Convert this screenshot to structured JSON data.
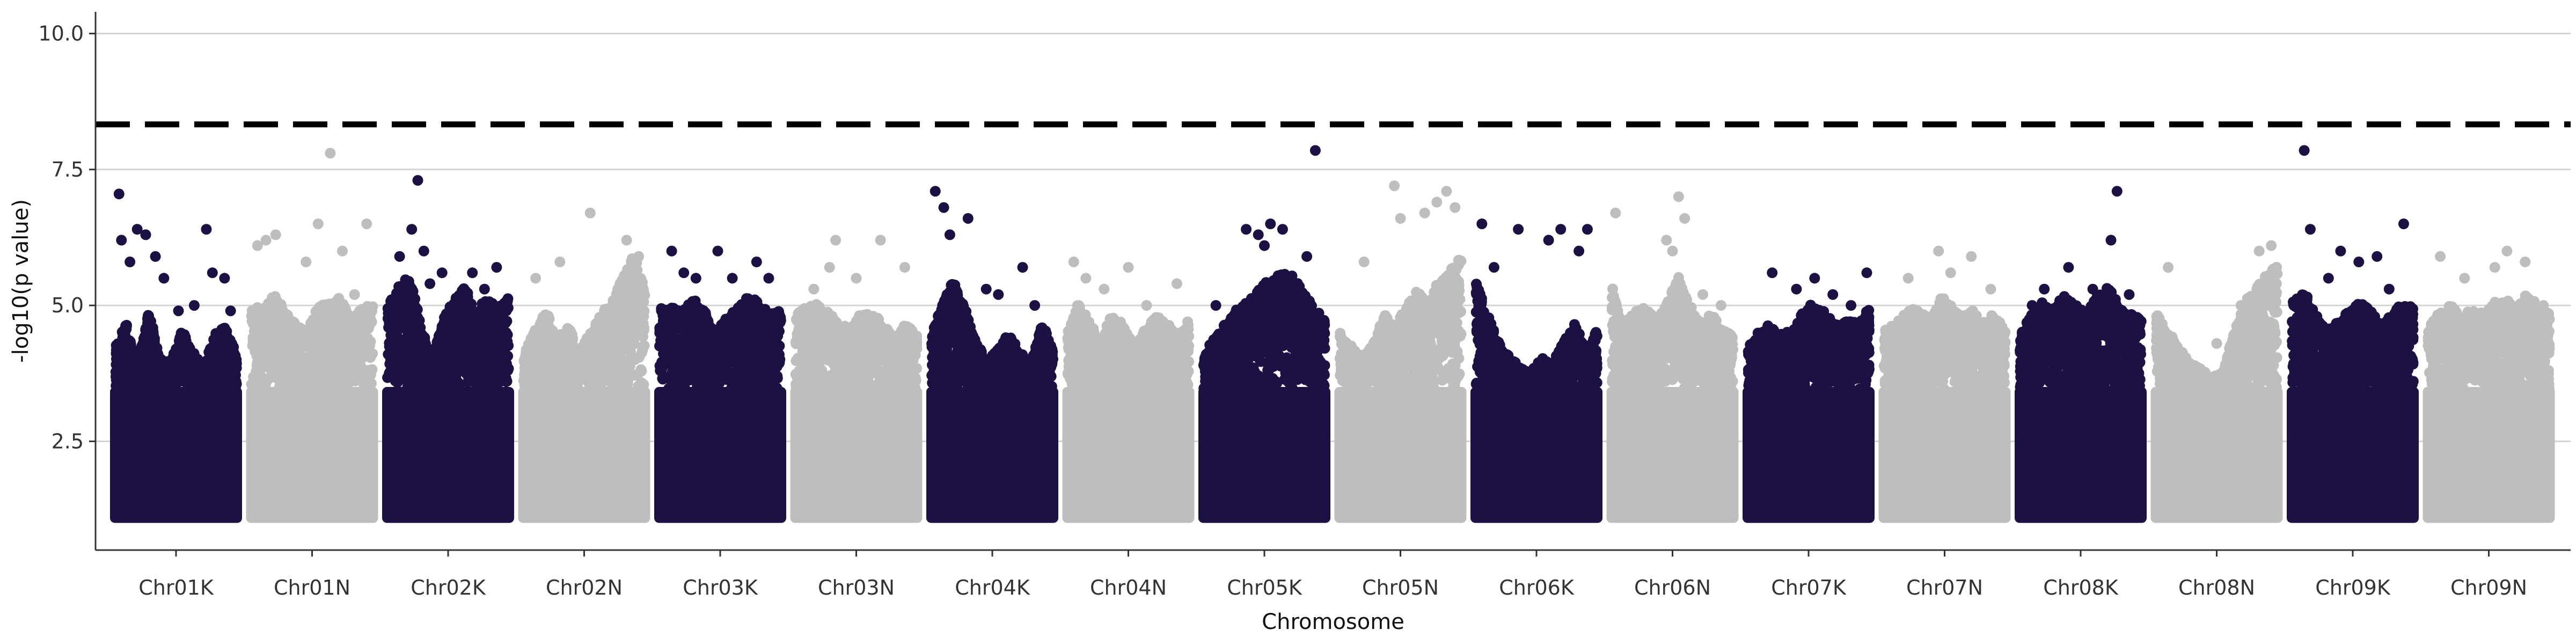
{
  "chart_data": {
    "type": "scatter",
    "title": "",
    "xlabel": "Chromosome",
    "ylabel": "-log10(p value)",
    "ylim": [
      0.5,
      10.4
    ],
    "yticks": [
      2.5,
      5.0,
      7.5,
      10.0
    ],
    "yticks_text": [
      "2.5",
      "5.0",
      "7.5",
      "10.0"
    ],
    "grid": "horizontal major lines",
    "threshold": 8.33,
    "threshold_style": "dashed black line",
    "colors": [
      "#1c1142",
      "#bebebe"
    ],
    "categories": [
      "Chr01K",
      "Chr01N",
      "Chr02K",
      "Chr02N",
      "Chr03K",
      "Chr03N",
      "Chr04K",
      "Chr04N",
      "Chr05K",
      "Chr05N",
      "Chr06K",
      "Chr06N",
      "Chr07K",
      "Chr07N",
      "Chr08K",
      "Chr08N",
      "Chr09K",
      "Chr09N"
    ],
    "series": [
      {
        "chromosome": "Chr01K",
        "color_index": 0,
        "dense_top": [
          4.2,
          4.6,
          3.8,
          4.9,
          4.0,
          3.9,
          4.5,
          4.1,
          3.8,
          4.4,
          4.6,
          4.0
        ],
        "peaks": [
          [
            0.03,
            7.05
          ],
          [
            0.05,
            6.2
          ],
          [
            0.12,
            5.8
          ],
          [
            0.18,
            6.4
          ],
          [
            0.25,
            6.3
          ],
          [
            0.33,
            5.9
          ],
          [
            0.4,
            5.5
          ],
          [
            0.52,
            4.9
          ],
          [
            0.65,
            5.0
          ],
          [
            0.75,
            6.4
          ],
          [
            0.8,
            5.6
          ],
          [
            0.9,
            5.5
          ],
          [
            0.95,
            4.9
          ]
        ]
      },
      {
        "chromosome": "Chr01N",
        "color_index": 1,
        "dense_top": [
          5.0,
          4.8,
          5.2,
          4.9,
          4.6,
          4.5,
          4.9,
          5.0,
          5.1,
          4.7,
          4.9,
          5.0
        ],
        "peaks": [
          [
            0.05,
            6.1
          ],
          [
            0.12,
            6.2
          ],
          [
            0.2,
            6.3
          ],
          [
            0.45,
            5.8
          ],
          [
            0.55,
            6.5
          ],
          [
            0.65,
            7.8
          ],
          [
            0.75,
            6.0
          ],
          [
            0.85,
            5.2
          ],
          [
            0.95,
            6.5
          ]
        ]
      },
      {
        "chromosome": "Chr02K",
        "color_index": 0,
        "dense_top": [
          4.9,
          5.3,
          5.5,
          4.6,
          3.9,
          4.7,
          5.0,
          5.3,
          4.8,
          5.1,
          4.9,
          5.2
        ],
        "peaks": [
          [
            0.1,
            5.9
          ],
          [
            0.2,
            6.4
          ],
          [
            0.25,
            7.3
          ],
          [
            0.3,
            6.0
          ],
          [
            0.35,
            5.4
          ],
          [
            0.45,
            5.6
          ],
          [
            0.7,
            5.6
          ],
          [
            0.8,
            5.3
          ],
          [
            0.9,
            5.7
          ]
        ]
      },
      {
        "chromosome": "Chr02N",
        "color_index": 1,
        "dense_top": [
          4.0,
          4.5,
          4.9,
          4.3,
          4.6,
          4.1,
          4.4,
          4.8,
          5.0,
          5.5,
          5.9,
          5.2
        ],
        "peaks": [
          [
            0.1,
            5.5
          ],
          [
            0.3,
            5.8
          ],
          [
            0.55,
            6.7
          ],
          [
            0.85,
            6.2
          ],
          [
            0.95,
            5.9
          ]
        ]
      },
      {
        "chromosome": "Chr03K",
        "color_index": 0,
        "dense_top": [
          4.9,
          5.0,
          4.8,
          5.1,
          4.9,
          4.4,
          4.7,
          4.9,
          5.1,
          5.0,
          4.8,
          4.9
        ],
        "peaks": [
          [
            0.1,
            6.0
          ],
          [
            0.2,
            5.6
          ],
          [
            0.3,
            5.5
          ],
          [
            0.48,
            6.0
          ],
          [
            0.6,
            5.5
          ],
          [
            0.8,
            5.8
          ],
          [
            0.9,
            5.5
          ]
        ]
      },
      {
        "chromosome": "Chr03N",
        "color_index": 1,
        "dense_top": [
          4.8,
          4.9,
          5.0,
          4.8,
          4.6,
          4.5,
          4.9,
          4.8,
          4.6,
          4.3,
          4.6,
          4.4
        ],
        "peaks": [
          [
            0.15,
            5.3
          ],
          [
            0.28,
            5.7
          ],
          [
            0.33,
            6.2
          ],
          [
            0.5,
            5.5
          ],
          [
            0.7,
            6.2
          ],
          [
            0.9,
            5.7
          ]
        ]
      },
      {
        "chromosome": "Chr04K",
        "color_index": 0,
        "dense_top": [
          4.4,
          5.0,
          5.4,
          4.9,
          4.3,
          3.9,
          4.2,
          4.4,
          4.1,
          3.9,
          4.6,
          4.2
        ],
        "peaks": [
          [
            0.03,
            7.1
          ],
          [
            0.1,
            6.8
          ],
          [
            0.15,
            6.3
          ],
          [
            0.3,
            6.6
          ],
          [
            0.45,
            5.3
          ],
          [
            0.55,
            5.2
          ],
          [
            0.75,
            5.7
          ],
          [
            0.85,
            5.0
          ]
        ]
      },
      {
        "chromosome": "Chr04N",
        "color_index": 1,
        "dense_top": [
          4.5,
          5.0,
          4.6,
          4.3,
          4.8,
          4.6,
          4.2,
          4.5,
          4.8,
          4.6,
          4.4,
          4.7
        ],
        "peaks": [
          [
            0.05,
            5.8
          ],
          [
            0.15,
            5.5
          ],
          [
            0.3,
            5.3
          ],
          [
            0.5,
            5.7
          ],
          [
            0.65,
            5.0
          ],
          [
            0.9,
            5.4
          ]
        ]
      },
      {
        "chromosome": "Chr05K",
        "color_index": 0,
        "dense_top": [
          4.0,
          4.4,
          4.6,
          4.9,
          5.0,
          5.3,
          5.4,
          5.6,
          5.5,
          5.2,
          4.9,
          4.7
        ],
        "peaks": [
          [
            0.1,
            5.0
          ],
          [
            0.35,
            6.4
          ],
          [
            0.45,
            6.3
          ],
          [
            0.5,
            6.1
          ],
          [
            0.55,
            6.5
          ],
          [
            0.65,
            6.4
          ],
          [
            0.85,
            5.9
          ],
          [
            0.92,
            7.85
          ]
        ]
      },
      {
        "chromosome": "Chr05N",
        "color_index": 1,
        "dense_top": [
          4.5,
          4.2,
          4.0,
          4.2,
          4.8,
          4.6,
          4.9,
          5.2,
          5.0,
          5.4,
          5.6,
          5.9
        ],
        "peaks": [
          [
            0.2,
            5.8
          ],
          [
            0.45,
            7.2
          ],
          [
            0.5,
            6.6
          ],
          [
            0.7,
            6.7
          ],
          [
            0.8,
            6.9
          ],
          [
            0.88,
            7.1
          ],
          [
            0.95,
            6.8
          ]
        ]
      },
      {
        "chromosome": "Chr06K",
        "color_index": 0,
        "dense_top": [
          5.5,
          4.8,
          4.3,
          4.0,
          3.8,
          3.7,
          4.0,
          3.9,
          4.3,
          4.6,
          4.1,
          4.5
        ],
        "peaks": [
          [
            0.05,
            6.5
          ],
          [
            0.15,
            5.7
          ],
          [
            0.35,
            6.4
          ],
          [
            0.6,
            6.2
          ],
          [
            0.7,
            6.4
          ],
          [
            0.85,
            6.0
          ],
          [
            0.92,
            6.4
          ]
        ]
      },
      {
        "chromosome": "Chr06N",
        "color_index": 1,
        "dense_top": [
          5.3,
          4.6,
          4.8,
          4.9,
          4.7,
          5.0,
          5.5,
          5.0,
          4.6,
          4.8,
          4.5,
          4.4
        ],
        "peaks": [
          [
            0.03,
            6.7
          ],
          [
            0.45,
            6.2
          ],
          [
            0.5,
            6.0
          ],
          [
            0.55,
            7.0
          ],
          [
            0.6,
            6.6
          ],
          [
            0.75,
            5.2
          ],
          [
            0.9,
            5.0
          ]
        ]
      },
      {
        "chromosome": "Chr07K",
        "color_index": 0,
        "dense_top": [
          4.2,
          4.5,
          4.6,
          4.4,
          4.5,
          4.8,
          5.0,
          4.8,
          4.6,
          4.7,
          4.6,
          4.9
        ],
        "peaks": [
          [
            0.2,
            5.6
          ],
          [
            0.4,
            5.3
          ],
          [
            0.55,
            5.5
          ],
          [
            0.7,
            5.2
          ],
          [
            0.85,
            5.0
          ],
          [
            0.98,
            5.6
          ]
        ]
      },
      {
        "chromosome": "Chr07N",
        "color_index": 1,
        "dense_top": [
          4.5,
          4.6,
          4.8,
          4.9,
          4.7,
          5.1,
          5.0,
          4.7,
          4.9,
          4.6,
          4.8,
          4.5
        ],
        "peaks": [
          [
            0.2,
            5.5
          ],
          [
            0.45,
            6.0
          ],
          [
            0.55,
            5.6
          ],
          [
            0.72,
            5.9
          ],
          [
            0.88,
            5.3
          ]
        ]
      },
      {
        "chromosome": "Chr08K",
        "color_index": 0,
        "dense_top": [
          4.4,
          4.8,
          5.0,
          4.9,
          5.1,
          5.0,
          4.8,
          5.2,
          5.3,
          4.9,
          4.8,
          4.7
        ],
        "peaks": [
          [
            0.1,
            5.0
          ],
          [
            0.2,
            5.3
          ],
          [
            0.4,
            5.7
          ],
          [
            0.6,
            5.3
          ],
          [
            0.75,
            6.2
          ],
          [
            0.8,
            7.1
          ],
          [
            0.9,
            5.2
          ]
        ]
      },
      {
        "chromosome": "Chr08N",
        "color_index": 1,
        "dense_top": [
          4.8,
          4.5,
          4.2,
          3.9,
          3.8,
          3.6,
          3.7,
          4.4,
          5.0,
          5.3,
          5.5,
          5.8
        ],
        "peaks": [
          [
            0.1,
            5.7
          ],
          [
            0.5,
            4.3
          ],
          [
            0.7,
            5.0
          ],
          [
            0.85,
            6.0
          ],
          [
            0.95,
            6.1
          ]
        ]
      },
      {
        "chromosome": "Chr09K",
        "color_index": 0,
        "dense_top": [
          5.0,
          5.2,
          4.9,
          4.5,
          4.6,
          4.8,
          5.0,
          4.9,
          4.6,
          4.8,
          5.0,
          4.9
        ],
        "peaks": [
          [
            0.1,
            7.85
          ],
          [
            0.15,
            6.4
          ],
          [
            0.3,
            5.5
          ],
          [
            0.4,
            6.0
          ],
          [
            0.55,
            5.8
          ],
          [
            0.7,
            5.9
          ],
          [
            0.8,
            5.3
          ],
          [
            0.92,
            6.5
          ]
        ]
      },
      {
        "chromosome": "Chr09N",
        "color_index": 1,
        "dense_top": [
          4.6,
          4.8,
          5.0,
          4.7,
          4.9,
          4.8,
          5.0,
          5.1,
          4.9,
          5.2,
          4.9,
          4.8
        ],
        "peaks": [
          [
            0.1,
            5.9
          ],
          [
            0.3,
            5.5
          ],
          [
            0.55,
            5.7
          ],
          [
            0.65,
            6.0
          ],
          [
            0.8,
            5.8
          ],
          [
            0.95,
            5.0
          ]
        ]
      }
    ]
  }
}
